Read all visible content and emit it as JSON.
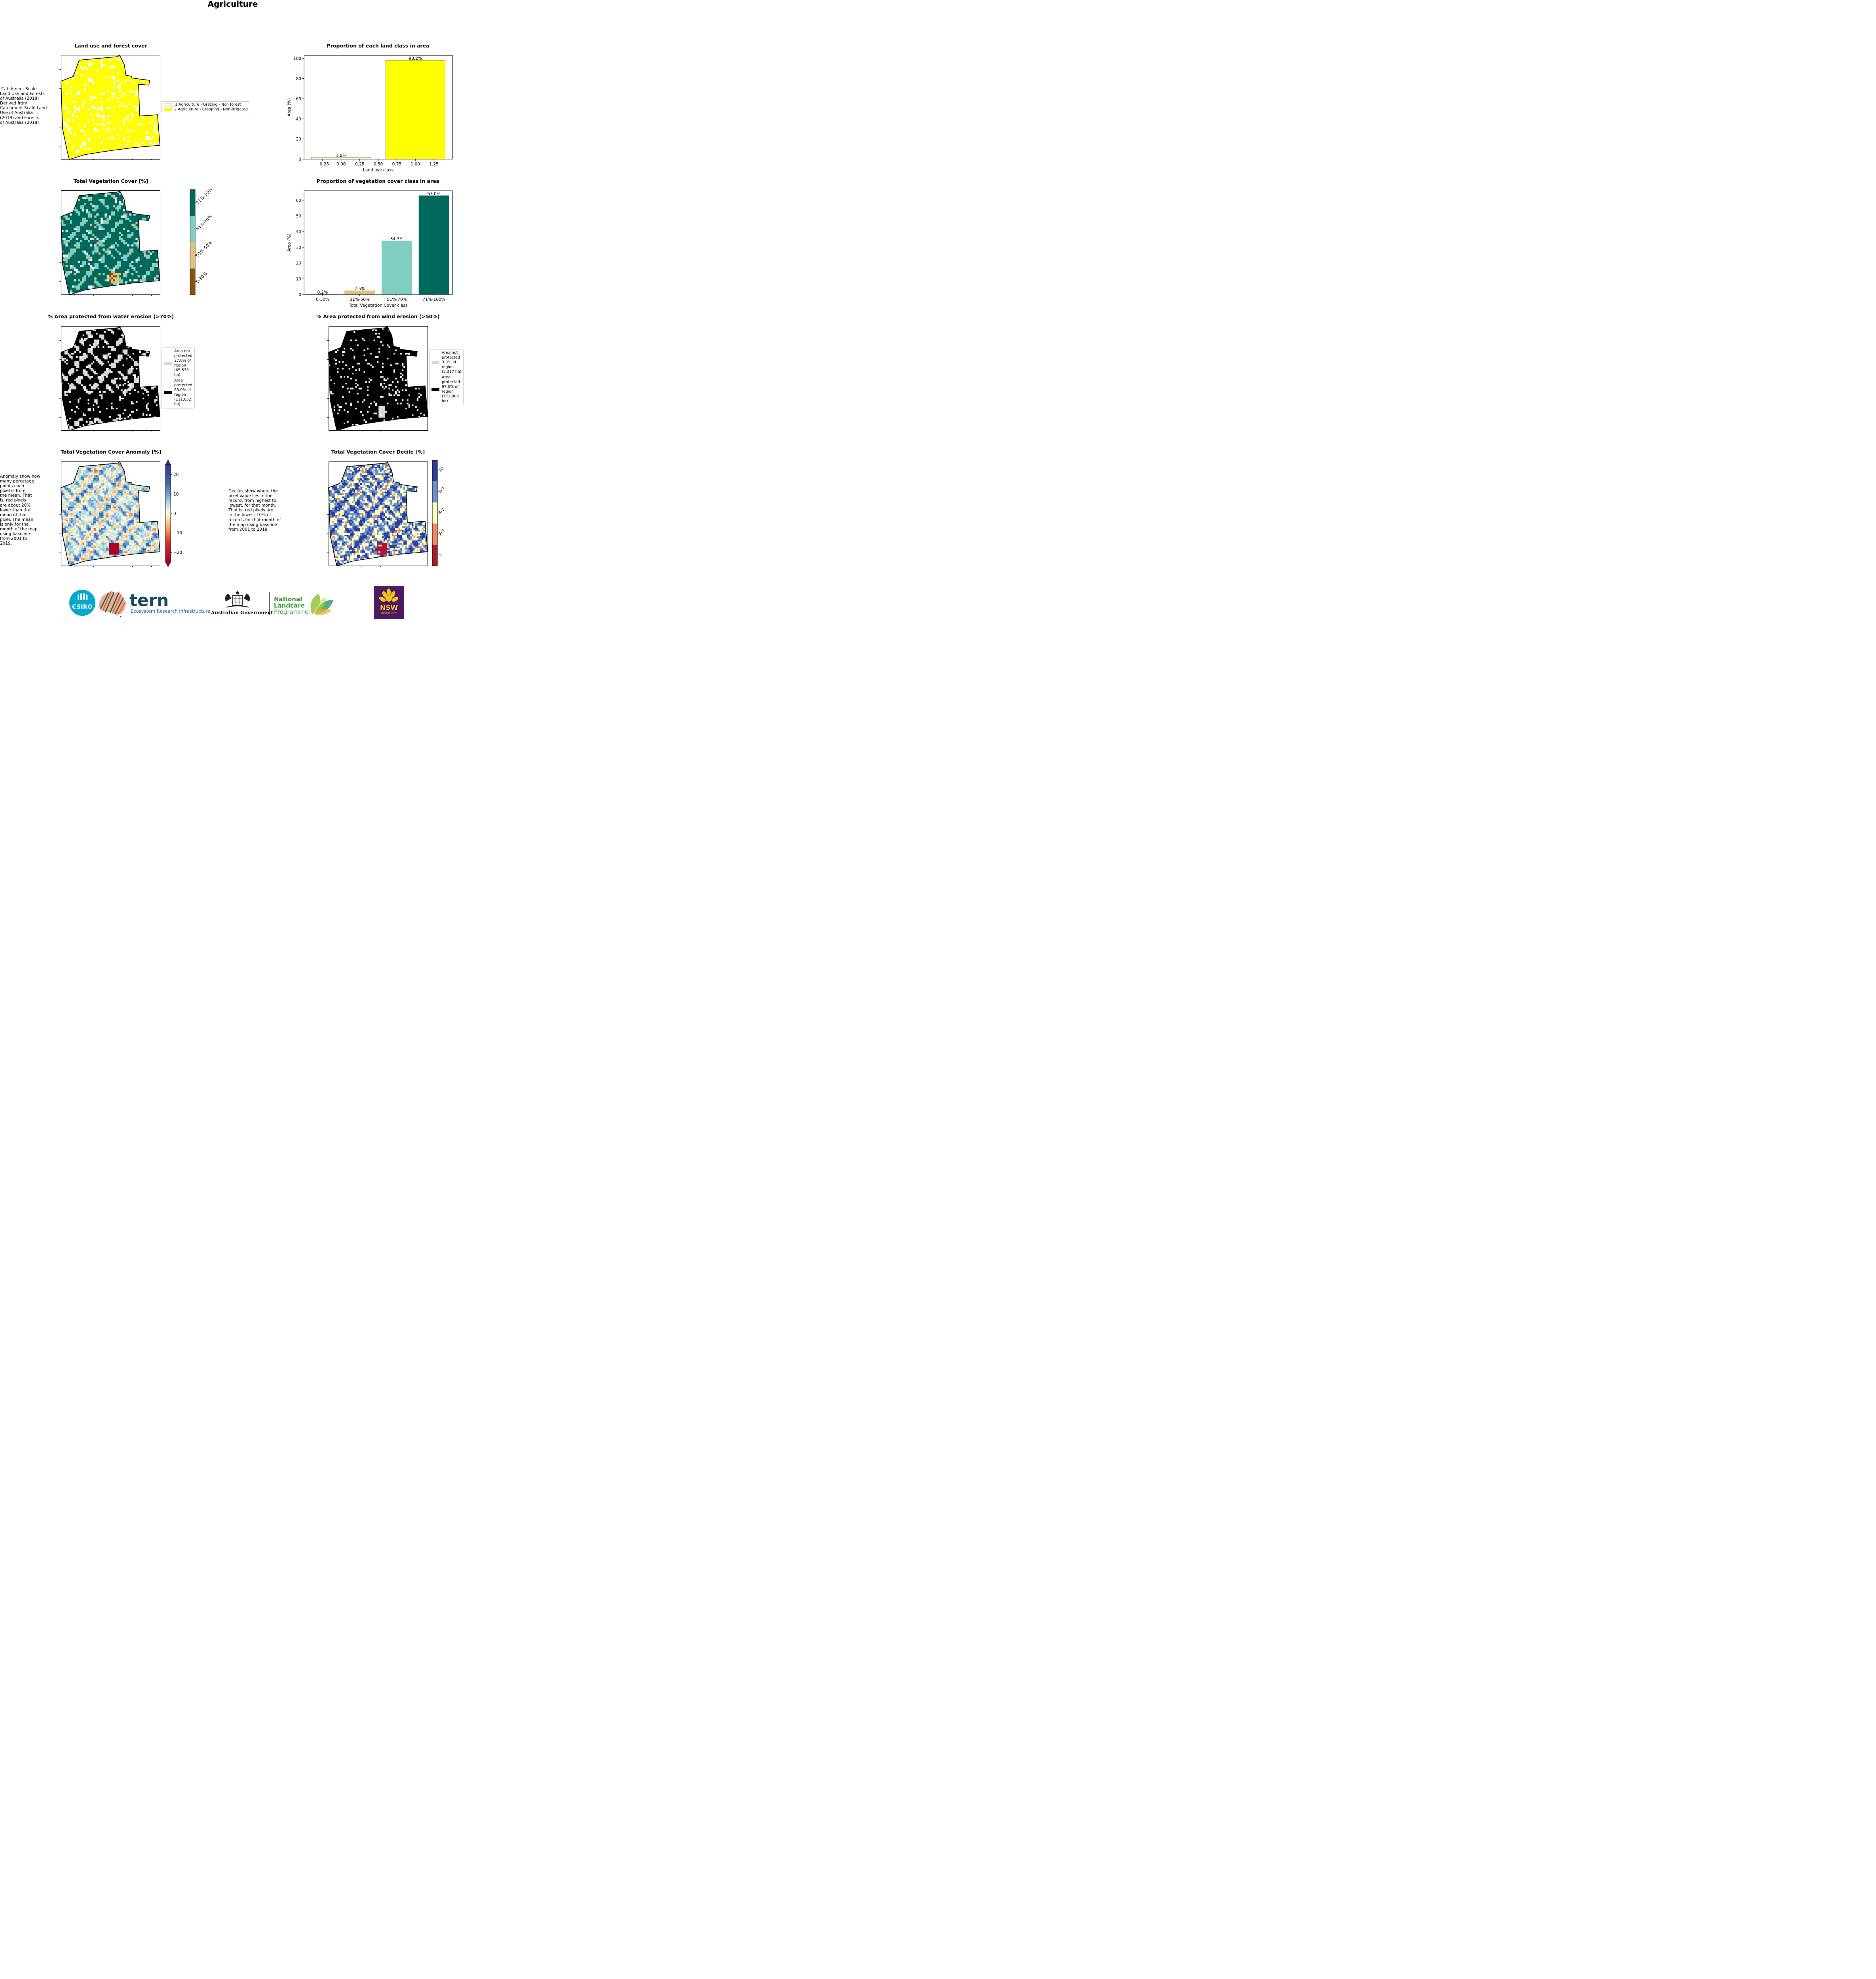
{
  "page_title": "Agriculture",
  "colors": {
    "yellow": "#ffff00",
    "pale": "#fffce0",
    "teal_dark": "#00695c",
    "teal_light": "#80cdc1",
    "tan": "#dfc27d",
    "brown": "#8c510a",
    "grey": "#d9d9d9",
    "black": "#000000"
  },
  "notes": {
    "landuse": " Catchment Scale\nLand Use and Forests\nof Australia (2018)\nDerived from\nCatchment Scale Land\nUse of Australia\n(2018) and Forests\nof Australia (2018)",
    "anomaly": "Anomaly show how\nmany percetage\npoints each\npixel is from\nthe mean. That\nis, red pixels\nare about 20%\nlower than the\nmean of that\npixel. The mean\nis only for the\nmonth of the map\nusing baseline\nfrom 2001 to\n2019.",
    "decile": "Deciles show where the\npixel value lies in the\nrecord, from highest to\nlowest, for that month.\nThat is, red pixels are\nin the lowest 10% of\nrecords for that month of\nthe map using baseline\nfrom 2001 to 2019."
  },
  "panels": {
    "landuse": {
      "title": "Land use and forest cover",
      "legend": [
        {
          "label": "1 Agriculture - Grazing - Non forest",
          "color": "#fffce0"
        },
        {
          "label": "2 Agriculture - Cropping - Non-irrigated",
          "color": "#ffff00"
        }
      ]
    },
    "tvc": {
      "title": "Total Vegetation Cover [%]",
      "colorbar": [
        {
          "label": "0-30%",
          "color": "#8c510a"
        },
        {
          "label": "31%-50%",
          "color": "#dfc27d"
        },
        {
          "label": "51%-70%",
          "color": "#80cdc1"
        },
        {
          "label": "71%-100%",
          "color": "#00695c"
        }
      ]
    },
    "water": {
      "title": "% Area protected from water erosion (>70%)",
      "legend": [
        {
          "label": "Area not\nprotected\n37.0% of\nregion\n(65,573\nha)",
          "color": "#d9d9d9"
        },
        {
          "label": "Area\nprotected\n63.0% of\nregion\n(111,652\nha)",
          "color": "#000000"
        }
      ]
    },
    "wind": {
      "title": "% Area protected from wind erosion (>50%)",
      "legend": [
        {
          "label": "Area not\nprotected\n3.0% of\nregion\n(5,317 ha)",
          "color": "#d9d9d9"
        },
        {
          "label": "Area\nprotected\n97.0% of\nregion\n(171,908\nha)",
          "color": "#000000"
        }
      ]
    },
    "anomaly": {
      "title": "Total Vegetation Cover Anomaly [%]",
      "ticks": [
        "20",
        "10",
        "0",
        "−10",
        "−20"
      ]
    },
    "decile": {
      "title": "Total Vegetation Cover Decile [%]",
      "colorbar": [
        {
          "label": "1",
          "color": "#b2182b"
        },
        {
          "label": "2-3",
          "color": "#ef8a62"
        },
        {
          "label": "4-7",
          "color": "#ffffc0"
        },
        {
          "label": "8-9",
          "color": "#6b8fd0"
        },
        {
          "label": "10",
          "color": "#2c3e9a"
        }
      ]
    }
  },
  "chart_data": [
    {
      "type": "bar",
      "title": "Proportion of each land class in area",
      "xlabel": "Land use class",
      "ylabel": "Area (%)",
      "x": [
        0,
        1
      ],
      "values": [
        1.8,
        98.2
      ],
      "data_labels": [
        "1.8%",
        "98.2%"
      ],
      "colors": [
        "#fffce0",
        "#ffff00"
      ],
      "xlim": [
        -0.5,
        1.5
      ],
      "ylim": [
        0,
        103
      ],
      "xticks": [
        -0.25,
        0.0,
        0.25,
        0.5,
        0.75,
        1.0,
        1.25
      ],
      "xtick_labels": [
        "−0.25",
        "0.00",
        "0.25",
        "0.50",
        "0.75",
        "1.00",
        "1.25"
      ],
      "yticks": [
        0,
        20,
        40,
        60,
        80,
        100
      ],
      "grid": false
    },
    {
      "type": "bar",
      "title": "Proportion of vegetation cover class in area",
      "xlabel": "Total Vegetation Cover class",
      "ylabel": "Area (%)",
      "categories": [
        "0-30%",
        "31%-50%",
        "51%-70%",
        "71%-100%"
      ],
      "values": [
        0.2,
        2.5,
        34.3,
        63.0
      ],
      "data_labels": [
        "0.2%",
        "2.5%",
        "34.3%",
        "63.0%"
      ],
      "colors": [
        "#8c510a",
        "#dfc27d",
        "#80cdc1",
        "#00695c"
      ],
      "ylim": [
        0,
        66
      ],
      "yticks": [
        0,
        10,
        20,
        30,
        40,
        50,
        60
      ],
      "grid": false
    }
  ],
  "logos": {
    "csiro": "CSIRO",
    "tern": "tern",
    "tern_sub": "Ecosystem Research Infrastructure",
    "gov": "Australian Government",
    "landcare1": "National",
    "landcare2": "Landcare",
    "landcare3": "Programme",
    "nsw": "NSW",
    "nsw_sub": "GOVERNMENT"
  }
}
